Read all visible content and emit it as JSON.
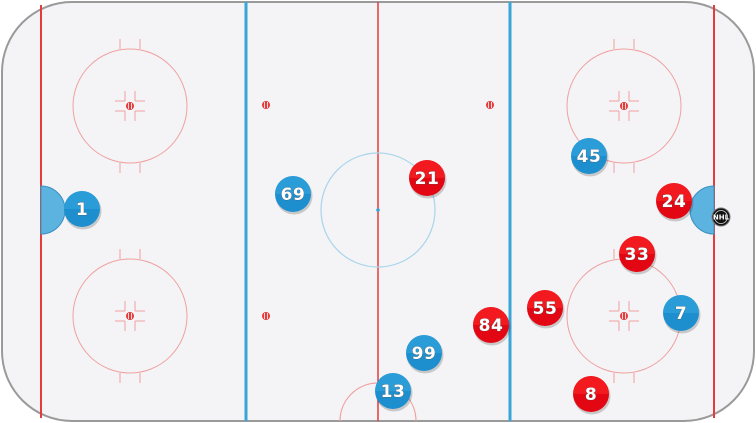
{
  "rink": {
    "ice_color": "#f4f4f6",
    "board_color": "#9a9a9a",
    "red_line_color": "#e53b3b",
    "blue_line_color": "#3aa5d8",
    "circle_color": "#f0a0a0",
    "crease_color": "#4aa8d8"
  },
  "teams": {
    "blue": {
      "color": "#1d8fcf",
      "color_light": "#35a8e0"
    },
    "red": {
      "color": "#e30613",
      "color_light": "#ff2a2a"
    }
  },
  "players": [
    {
      "team": "blue",
      "number": "1"
    },
    {
      "team": "blue",
      "number": "69"
    },
    {
      "team": "blue",
      "number": "45"
    },
    {
      "team": "blue",
      "number": "99"
    },
    {
      "team": "blue",
      "number": "13"
    },
    {
      "team": "blue",
      "number": "7"
    },
    {
      "team": "red",
      "number": "21"
    },
    {
      "team": "red",
      "number": "24"
    },
    {
      "team": "red",
      "number": "33"
    },
    {
      "team": "red",
      "number": "55"
    },
    {
      "team": "red",
      "number": "84"
    },
    {
      "team": "red",
      "number": "8"
    }
  ],
  "puck": {
    "label": "NHL",
    "icon": "puck-icon",
    "color": "#111111"
  }
}
